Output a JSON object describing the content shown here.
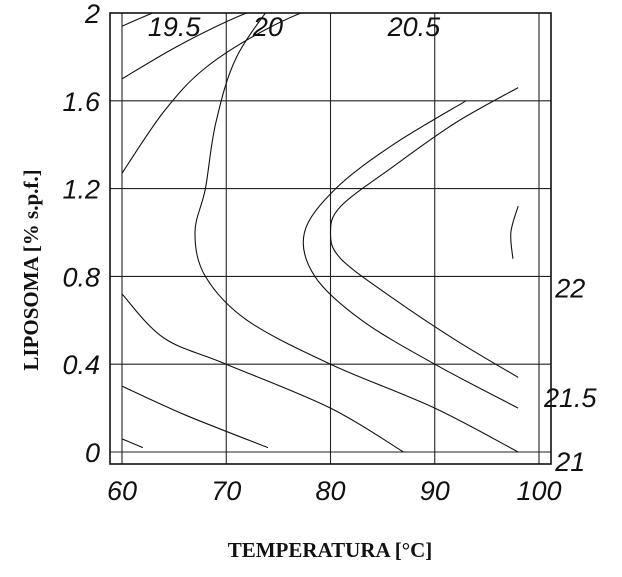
{
  "chart_data": {
    "type": "contour",
    "xlabel": "TEMPERATURA [°C]",
    "ylabel": "LIPOSOMA [% s.p.f.]",
    "xlim": [
      60,
      100
    ],
    "ylim": [
      0,
      2
    ],
    "x_ticks": [
      "60",
      "70",
      "80",
      "90",
      "100"
    ],
    "y_ticks": [
      "0",
      "0.4",
      "0.8",
      "1.2",
      "1.6",
      "2"
    ],
    "grid": true,
    "contours": [
      {
        "level": "19.5",
        "points": [
          [
            60,
            1.94
          ],
          [
            64,
            2.02
          ],
          [
            68,
            2.08
          ]
        ]
      },
      {
        "level": "20",
        "points": [
          [
            60,
            1.7
          ],
          [
            65,
            1.84
          ],
          [
            70,
            1.96
          ],
          [
            76,
            2.08
          ]
        ]
      },
      {
        "level": "20.5",
        "points": [
          [
            60,
            1.27
          ],
          [
            64,
            1.55
          ],
          [
            68,
            1.75
          ],
          [
            74,
            1.93
          ],
          [
            80,
            2.05
          ],
          [
            84,
            2.08
          ]
        ]
      },
      {
        "level": "21",
        "points": [
          [
            98,
            1.66
          ],
          [
            92,
            1.5
          ],
          [
            86,
            1.3
          ],
          [
            81,
            1.12
          ],
          [
            80,
            1.0
          ],
          [
            81,
            0.88
          ],
          [
            86,
            0.7
          ],
          [
            92,
            0.51
          ],
          [
            98,
            0.34
          ]
        ]
      },
      {
        "level": "21.5",
        "points": [
          [
            93,
            1.6
          ],
          [
            86,
            1.4
          ],
          [
            80.5,
            1.2
          ],
          [
            77.5,
            1.0
          ],
          [
            78.5,
            0.8
          ],
          [
            83,
            0.6
          ],
          [
            90,
            0.4
          ],
          [
            98,
            0.2
          ]
        ]
      },
      {
        "level": "21.5",
        "points": [
          [
            75,
            2.08
          ],
          [
            71,
            1.8
          ],
          [
            69,
            1.5
          ],
          [
            68,
            1.2
          ],
          [
            67,
            1.0
          ],
          [
            68,
            0.8
          ],
          [
            72,
            0.6
          ],
          [
            80,
            0.4
          ],
          [
            90,
            0.2
          ],
          [
            98,
            0.0
          ]
        ]
      },
      {
        "level": "22",
        "points": [
          [
            98,
            1.12
          ],
          [
            97.3,
            1.0
          ],
          [
            97.5,
            0.88
          ]
        ]
      },
      {
        "level": "22",
        "points": [
          [
            60,
            0.72
          ],
          [
            64,
            0.52
          ],
          [
            70,
            0.4
          ],
          [
            80,
            0.2
          ],
          [
            87,
            0.0
          ]
        ]
      },
      {
        "level": "21.5",
        "points": [
          [
            60,
            0.3
          ],
          [
            66,
            0.17
          ],
          [
            74,
            0.02
          ]
        ]
      },
      {
        "level": "21",
        "points": [
          [
            60,
            0.06
          ],
          [
            62,
            0.02
          ]
        ]
      }
    ],
    "contour_labels": [
      {
        "text": "19.5",
        "x": 65,
        "y": 1.94
      },
      {
        "text": "20",
        "x": 74,
        "y": 1.94
      },
      {
        "text": "20.5",
        "x": 88,
        "y": 1.94
      },
      {
        "text": "22",
        "x": 103,
        "y": 0.75
      },
      {
        "text": "21.5",
        "x": 103,
        "y": 0.25
      },
      {
        "text": "21",
        "x": 103,
        "y": -0.04
      }
    ]
  }
}
